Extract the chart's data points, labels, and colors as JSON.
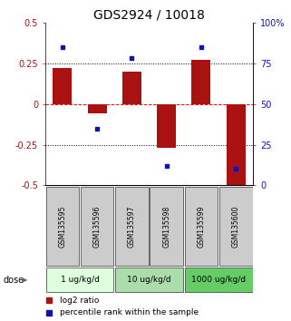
{
  "title": "GDS2924 / 10018",
  "samples": [
    "GSM135595",
    "GSM135596",
    "GSM135597",
    "GSM135598",
    "GSM135599",
    "GSM135600"
  ],
  "log2_ratio": [
    0.22,
    -0.06,
    0.2,
    -0.27,
    0.27,
    -0.5
  ],
  "percentile_rank": [
    85,
    35,
    78,
    12,
    85,
    10
  ],
  "bar_color": "#aa1111",
  "dot_color": "#1111bb",
  "ylim_left": [
    -0.5,
    0.5
  ],
  "ylim_right": [
    0,
    100
  ],
  "yticks_left": [
    -0.5,
    -0.25,
    0,
    0.25,
    0.5
  ],
  "yticks_right": [
    0,
    25,
    50,
    75,
    100
  ],
  "ytick_labels_right": [
    "0",
    "25",
    "50",
    "75",
    "100%"
  ],
  "dose_groups": [
    {
      "label": "1 ug/kg/d",
      "samples_idx": [
        0,
        1
      ],
      "color": "#ddffdd"
    },
    {
      "label": "10 ug/kg/d",
      "samples_idx": [
        2,
        3
      ],
      "color": "#aaddaa"
    },
    {
      "label": "1000 ug/kg/d",
      "samples_idx": [
        4,
        5
      ],
      "color": "#66cc66"
    }
  ],
  "dose_label": "dose",
  "legend_bar_label": "log2 ratio",
  "legend_dot_label": "percentile rank within the sample",
  "background_color": "#ffffff",
  "title_fontsize": 10,
  "tick_fontsize": 7,
  "label_fontsize": 6,
  "bar_width": 0.55
}
